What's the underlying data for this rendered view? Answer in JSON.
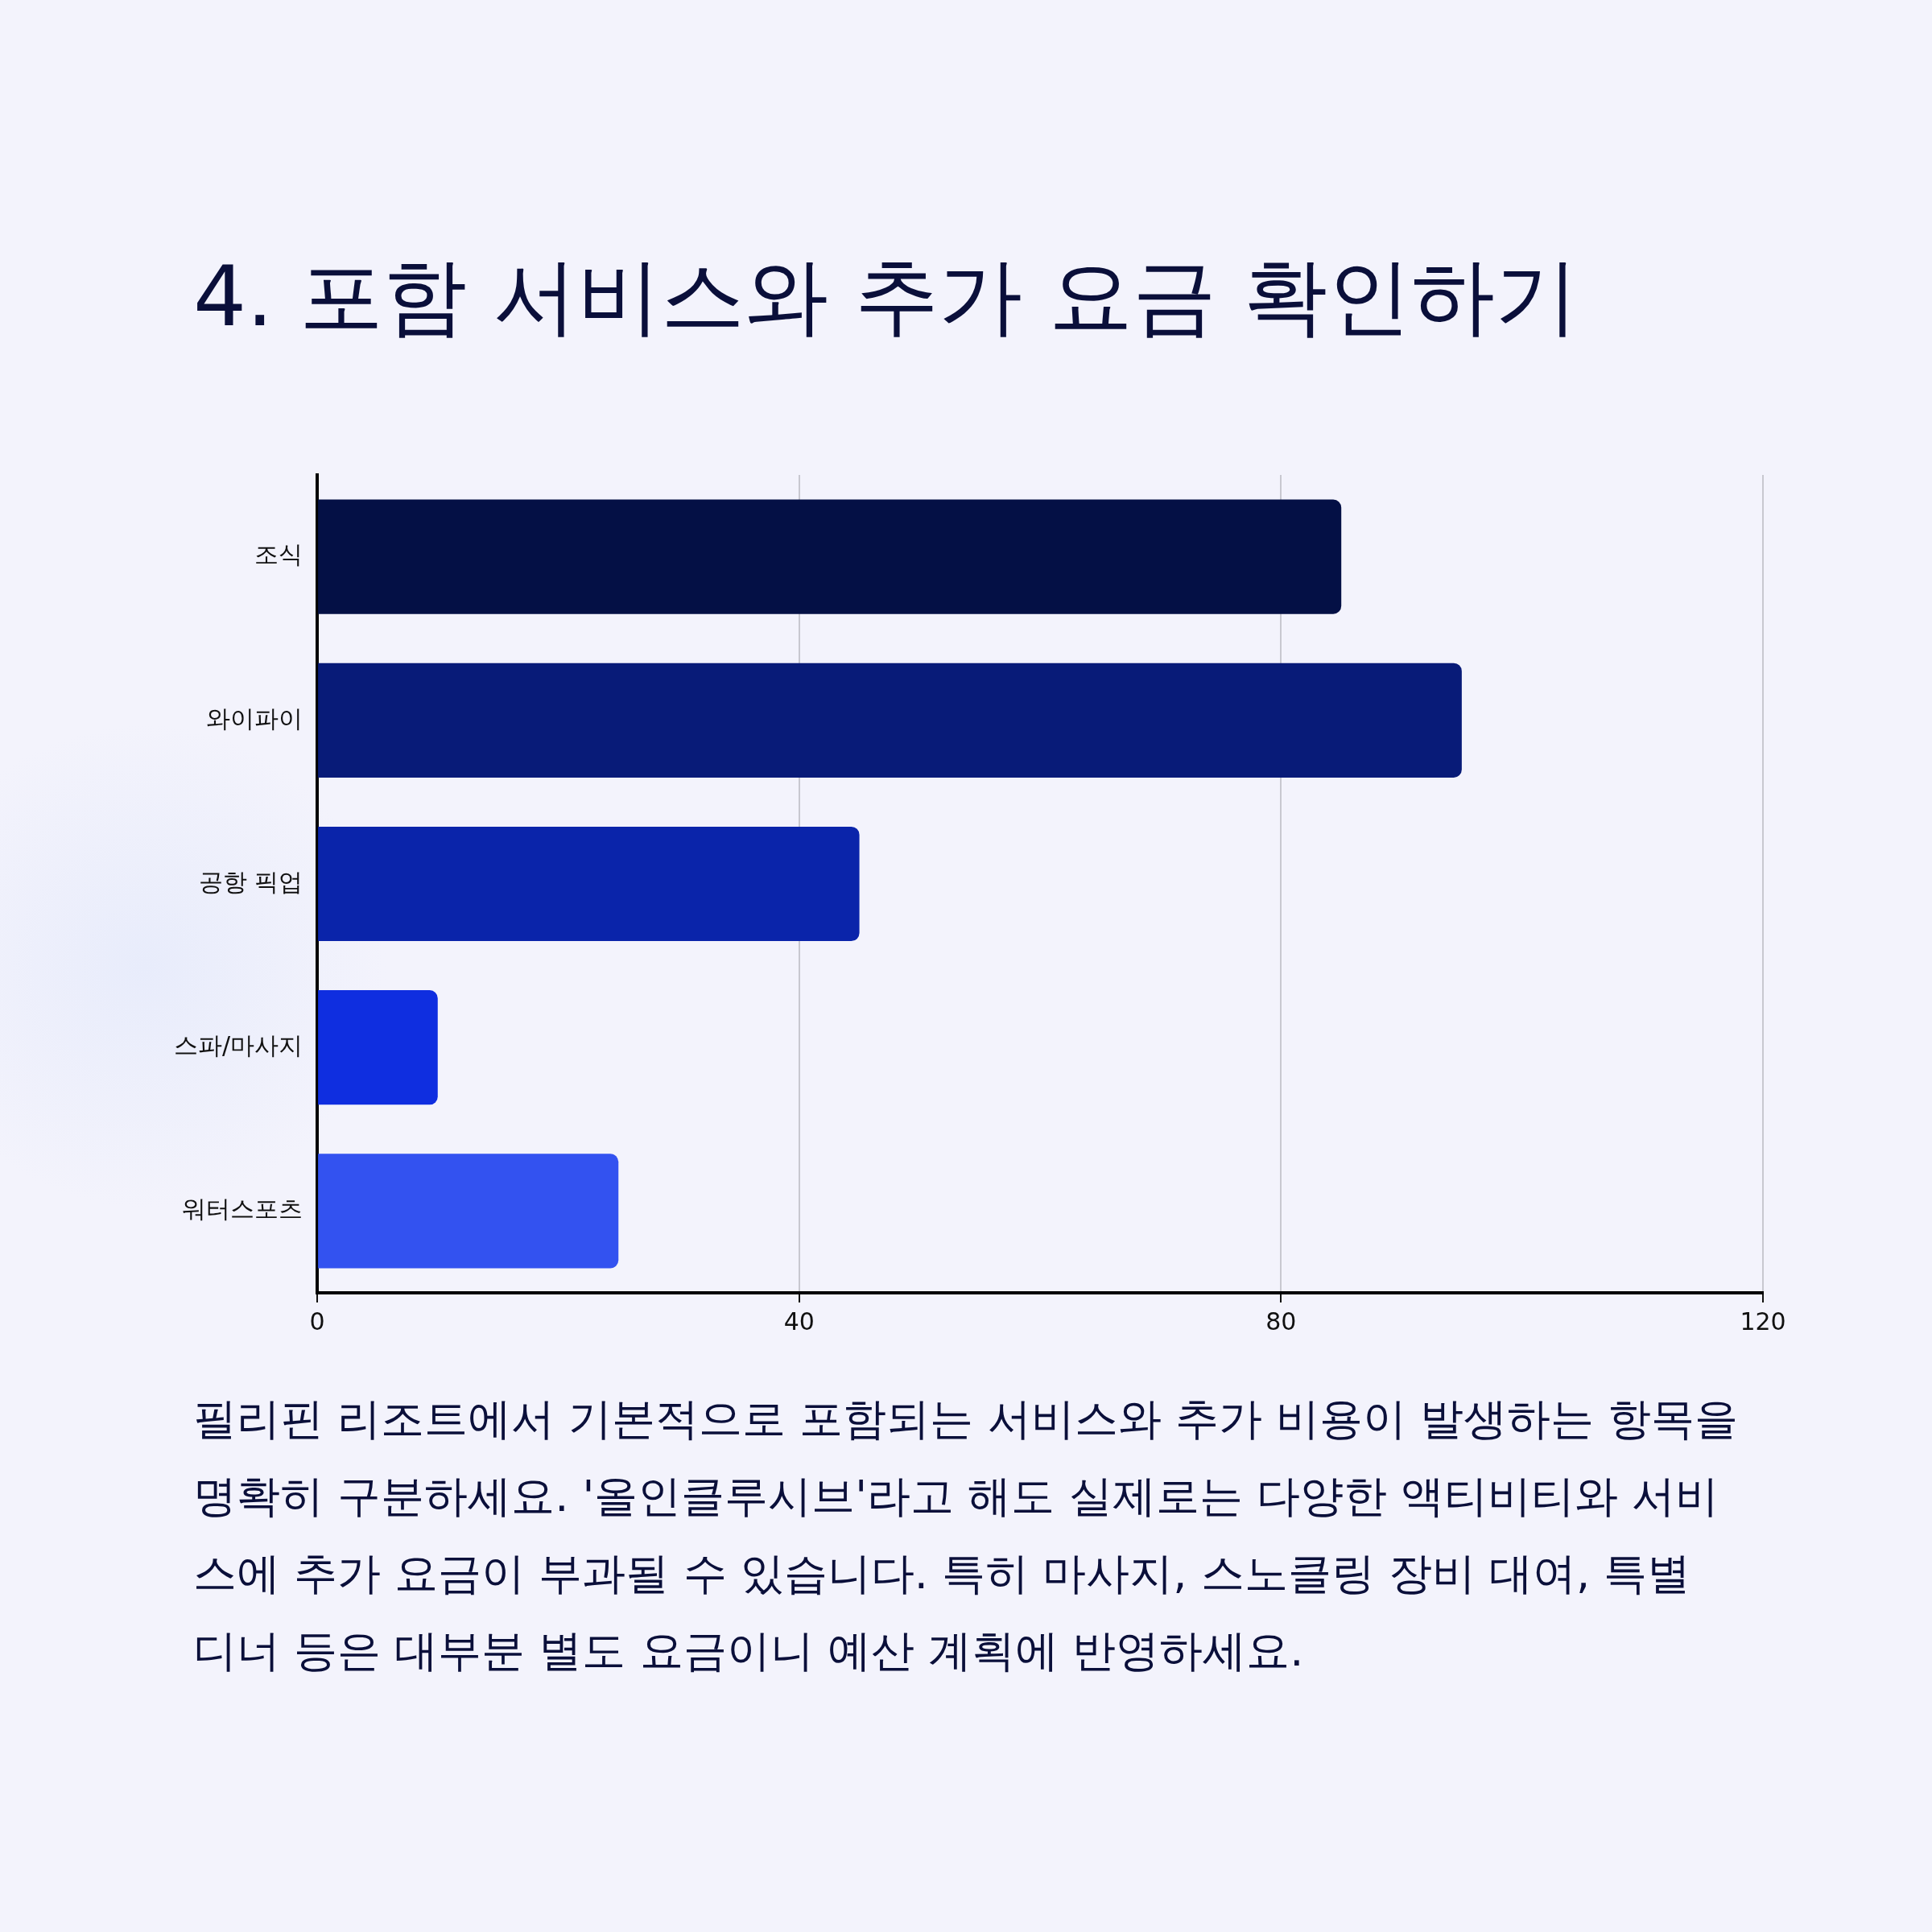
{
  "chart_data": {
    "type": "bar",
    "orientation": "horizontal",
    "title": "4. 포함 서비스와 추가 요금 확인하기",
    "categories": [
      "조식",
      "와이파이",
      "공항 픽업",
      "스파/마사지",
      "워터스포츠"
    ],
    "values": [
      85,
      95,
      45,
      10,
      25
    ],
    "colors": [
      "#041045",
      "#081b78",
      "#0a24aa",
      "#0f2ee0",
      "#3352f0"
    ],
    "xlim": [
      0,
      120
    ],
    "xticks": [
      0,
      40,
      80,
      120
    ],
    "grid": "x",
    "annotations": [
      "필리핀 리조트에서 기본적으로 포함되는 서비스와 추가 비용이 발생하는 항목을 명확히 구분하세요. '올인클루시브'라고 해도 실제로는 다양한 액티비티와 서비스에 추가 요금이 부과될 수 있습니다. 특히 마사지, 스노클링 장비 대여, 특별 디너 등은 대부분 별도 요금이니 예산 계획에 반영하세요."
    ]
  }
}
